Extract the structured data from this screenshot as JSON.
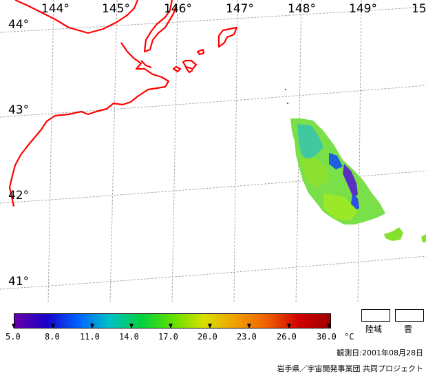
{
  "map": {
    "lon_labels": [
      "144°",
      "145°",
      "146°",
      "147°",
      "148°",
      "149°",
      "15"
    ],
    "lat_labels": [
      "44°",
      "43°",
      "42°",
      "41°"
    ]
  },
  "legend": {
    "ticks": [
      "5.0",
      "8.0",
      "11.0",
      "14.0",
      "17.0",
      "20.0",
      "23.0",
      "26.0",
      "30.0"
    ],
    "unit": "°C",
    "land_label": "陸域",
    "cloud_label": "雲",
    "gradient_colors": [
      "#6a00a8",
      "#1a00c8",
      "#0060ff",
      "#00c0c8",
      "#00d040",
      "#60e000",
      "#d8e000",
      "#f0a000",
      "#f06000",
      "#d00000",
      "#a00000"
    ]
  },
  "footer": {
    "observation_date": "観測日:2001年08月28日",
    "credit": "岩手県／宇宙開発事業団  共同プロジェクト"
  },
  "colors": {
    "coast": "#ff0000",
    "grid": "#a8a8a8"
  }
}
